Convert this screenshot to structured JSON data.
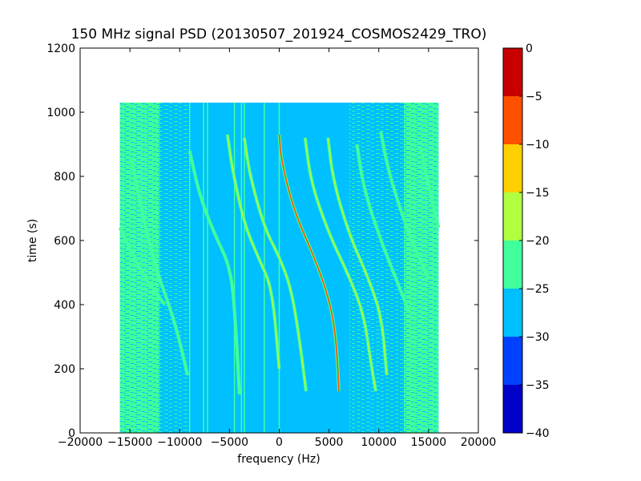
{
  "chart_data": {
    "type": "heatmap",
    "title": "150 MHz signal PSD (20130507_201924_COSMOS2429_TRO)",
    "xlabel": "frequency (Hz)",
    "ylabel": "time (s)",
    "xlim": [
      -20000,
      20000
    ],
    "ylim": [
      0,
      1200
    ],
    "xticks": [
      "−20000",
      "−15000",
      "−10000",
      "−5000",
      "0",
      "5000",
      "10000",
      "15000",
      "20000"
    ],
    "xtick_values": [
      -20000,
      -15000,
      -10000,
      -5000,
      0,
      5000,
      10000,
      15000,
      20000
    ],
    "yticks": [
      "0",
      "200",
      "400",
      "600",
      "800",
      "1000",
      "1200"
    ],
    "ytick_values": [
      0,
      200,
      400,
      600,
      800,
      1000,
      1200
    ],
    "data_extent": {
      "freq_hz": [
        -16000,
        16000
      ],
      "time_s": [
        0,
        1030
      ]
    },
    "background_level_db": -27,
    "edge_noise_level_db": -22,
    "colorbar": {
      "range": [
        -40,
        0
      ],
      "ticks": [
        "0",
        "−5",
        "−10",
        "−15",
        "−20",
        "−25",
        "−30",
        "−35",
        "−40"
      ],
      "tick_values": [
        0,
        -5,
        -10,
        -15,
        -20,
        -25,
        -30,
        -35,
        -40
      ],
      "bands": [
        {
          "from": -40,
          "to": -35,
          "color": "#0000c8"
        },
        {
          "from": -35,
          "to": -30,
          "color": "#0040ff"
        },
        {
          "from": -30,
          "to": -25,
          "color": "#00c0ff"
        },
        {
          "from": -25,
          "to": -20,
          "color": "#40ff9c"
        },
        {
          "from": -20,
          "to": -15,
          "color": "#b0ff40"
        },
        {
          "from": -15,
          "to": -10,
          "color": "#ffd000"
        },
        {
          "from": -10,
          "to": -5,
          "color": "#ff5000"
        },
        {
          "from": -5,
          "to": 0,
          "color": "#c80000"
        }
      ]
    },
    "vertical_lines_hz": [
      -9000,
      -7600,
      -7200,
      -4500,
      -3800,
      -3500,
      -1500,
      0
    ],
    "series": [
      {
        "level_db": -20,
        "points": [
          [
            -16000,
            640
          ],
          [
            -14500,
            540
          ],
          [
            -13200,
            470
          ],
          [
            -11500,
            400
          ]
        ]
      },
      {
        "level_db": -20,
        "points": [
          [
            -14800,
            850
          ],
          [
            -14000,
            720
          ],
          [
            -12500,
            520
          ],
          [
            -10500,
            350
          ],
          [
            -9200,
            180
          ]
        ]
      },
      {
        "level_db": -20,
        "points": [
          [
            -9000,
            880
          ],
          [
            -8000,
            740
          ],
          [
            -6500,
            620
          ],
          [
            -4800,
            510
          ],
          [
            -4300,
            300
          ],
          [
            -4000,
            120
          ]
        ]
      },
      {
        "level_db": -18,
        "points": [
          [
            -5200,
            930
          ],
          [
            -4700,
            820
          ],
          [
            -3500,
            650
          ],
          [
            -2000,
            540
          ],
          [
            -700,
            450
          ],
          [
            0,
            200
          ]
        ]
      },
      {
        "level_db": -18,
        "points": [
          [
            -3500,
            920
          ],
          [
            -3000,
            810
          ],
          [
            -1500,
            640
          ],
          [
            0,
            550
          ],
          [
            1200,
            450
          ],
          [
            2000,
            300
          ],
          [
            2700,
            130
          ]
        ]
      },
      {
        "level_db": -8,
        "points": [
          [
            0,
            930
          ],
          [
            200,
            850
          ],
          [
            1500,
            690
          ],
          [
            3500,
            550
          ],
          [
            5000,
            420
          ],
          [
            5700,
            300
          ],
          [
            6000,
            130
          ]
        ]
      },
      {
        "level_db": -15,
        "points": [
          [
            2600,
            920
          ],
          [
            3200,
            780
          ],
          [
            5000,
            620
          ],
          [
            7000,
            490
          ],
          [
            8500,
            370
          ],
          [
            9200,
            220
          ],
          [
            9700,
            130
          ]
        ]
      },
      {
        "level_db": -15,
        "points": [
          [
            4900,
            920
          ],
          [
            5400,
            790
          ],
          [
            7000,
            620
          ],
          [
            9000,
            480
          ],
          [
            10300,
            360
          ],
          [
            10800,
            180
          ]
        ]
      },
      {
        "level_db": -20,
        "points": [
          [
            7800,
            900
          ],
          [
            8500,
            760
          ],
          [
            10200,
            600
          ],
          [
            12000,
            460
          ],
          [
            13000,
            380
          ]
        ]
      },
      {
        "level_db": -20,
        "points": [
          [
            10200,
            940
          ],
          [
            11000,
            810
          ],
          [
            13000,
            620
          ],
          [
            15000,
            480
          ]
        ]
      },
      {
        "level_db": -20,
        "points": [
          [
            14200,
            890
          ],
          [
            15000,
            770
          ],
          [
            16000,
            640
          ]
        ]
      }
    ]
  }
}
